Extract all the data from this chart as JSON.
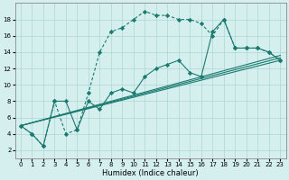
{
  "xlabel": "Humidex (Indice chaleur)",
  "background_color": "#d5efef",
  "grid_color": "#aed4d4",
  "line_color": "#1a7a6e",
  "xlim": [
    -0.5,
    23.5
  ],
  "ylim": [
    1,
    20
  ],
  "yticks": [
    2,
    4,
    6,
    8,
    10,
    12,
    14,
    16,
    18
  ],
  "xticks": [
    0,
    1,
    2,
    3,
    4,
    5,
    6,
    7,
    8,
    9,
    10,
    11,
    12,
    13,
    14,
    15,
    16,
    17,
    18,
    19,
    20,
    21,
    22,
    23
  ],
  "s1_x": [
    0,
    1,
    2,
    3,
    4,
    5,
    6,
    7,
    8,
    9,
    10,
    11,
    12,
    13,
    14,
    15,
    16,
    17,
    18,
    19,
    20,
    21,
    22,
    23
  ],
  "s1_y": [
    5,
    4,
    2.5,
    8,
    8,
    4.5,
    8,
    7,
    9,
    9.5,
    9,
    11,
    12,
    12.5,
    13,
    11.5,
    11,
    16.5,
    18,
    14.5,
    14.5,
    14.5,
    14,
    13
  ],
  "s2_x": [
    0,
    1,
    2,
    3,
    4,
    5,
    6,
    7,
    8,
    9,
    10,
    11,
    12,
    13,
    14,
    15,
    16,
    17,
    18,
    19,
    20,
    21,
    22,
    23
  ],
  "s2_y": [
    5,
    4,
    2.5,
    8,
    4,
    4.5,
    9,
    14,
    16.5,
    17,
    18,
    19,
    18.5,
    18.5,
    18,
    18,
    17.5,
    16,
    18,
    14.5,
    14.5,
    14.5,
    14,
    13
  ]
}
